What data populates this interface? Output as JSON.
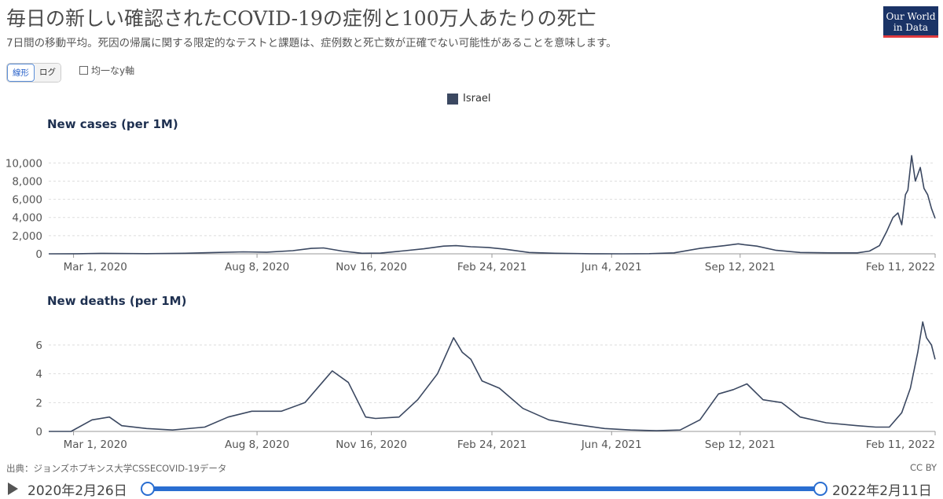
{
  "header": {
    "title": "毎日の新しい確認されたCOVID-19の症例と100万人あたりの死亡",
    "subtitle": "7日間の移動平均。死因の帰属に関する限定的なテストと課題は、症例数と死亡数が正確でない可能性があることを意味します。",
    "logo_line1": "Our World",
    "logo_line2": "in Data"
  },
  "controls": {
    "linear_label": "線形",
    "log_label": "ログ",
    "uniform_axis_label": "均一なy軸",
    "uniform_axis_checked": false
  },
  "legend": {
    "name": "Israel",
    "color": "#3b4861"
  },
  "chart_data": [
    {
      "type": "line",
      "title": "New cases (per 1M)",
      "x_tick_labels": [
        "Mar 1, 2020",
        "Aug 8, 2020",
        "Nov 16, 2020",
        "Feb 24, 2021",
        "Jun 4, 2021",
        "Sep 12, 2021",
        "Feb 11, 2022"
      ],
      "y_ticks": [
        0,
        2000,
        4000,
        6000,
        8000,
        10000
      ],
      "y_tick_labels": [
        "0",
        "2,000",
        "4,000",
        "6,000",
        "8,000",
        "10,000"
      ],
      "ylim": [
        0,
        11500
      ],
      "grid": true,
      "x": [
        "2020-02-26",
        "2020-03-20",
        "2020-04-10",
        "2020-05-15",
        "2020-06-15",
        "2020-07-10",
        "2020-08-01",
        "2020-08-20",
        "2020-09-10",
        "2020-09-25",
        "2020-10-05",
        "2020-10-20",
        "2020-11-05",
        "2020-11-20",
        "2020-12-10",
        "2020-12-25",
        "2021-01-10",
        "2021-01-20",
        "2021-02-01",
        "2021-02-15",
        "2021-03-01",
        "2021-03-20",
        "2021-04-10",
        "2021-05-10",
        "2021-06-04",
        "2021-06-25",
        "2021-07-15",
        "2021-08-05",
        "2021-08-25",
        "2021-09-05",
        "2021-09-10",
        "2021-09-20",
        "2021-10-05",
        "2021-10-25",
        "2021-11-20",
        "2021-12-10",
        "2021-12-20",
        "2021-12-28",
        "2022-01-03",
        "2022-01-08",
        "2022-01-12",
        "2022-01-15",
        "2022-01-18",
        "2022-01-20",
        "2022-01-23",
        "2022-01-26",
        "2022-01-30",
        "2022-02-02",
        "2022-02-05",
        "2022-02-08",
        "2022-02-11"
      ],
      "series": [
        {
          "name": "Israel",
          "values": [
            0,
            10,
            50,
            20,
            60,
            150,
            220,
            180,
            350,
            600,
            650,
            300,
            60,
            80,
            350,
            550,
            850,
            900,
            780,
            700,
            500,
            150,
            60,
            10,
            0,
            20,
            100,
            600,
            900,
            1100,
            1000,
            850,
            400,
            150,
            100,
            100,
            300,
            900,
            2500,
            4000,
            4500,
            3200,
            6500,
            7000,
            10800,
            8000,
            9500,
            7200,
            6500,
            5000,
            3900
          ]
        }
      ]
    },
    {
      "type": "line",
      "title": "New deaths (per 1M)",
      "x_tick_labels": [
        "Mar 1, 2020",
        "Aug 8, 2020",
        "Nov 16, 2020",
        "Feb 24, 2021",
        "Jun 4, 2021",
        "Sep 12, 2021",
        "Feb 11, 2022"
      ],
      "y_ticks": [
        0,
        2,
        4,
        6
      ],
      "y_tick_labels": [
        "0",
        "2",
        "4",
        "6"
      ],
      "ylim": [
        0,
        7.8
      ],
      "grid": true,
      "x": [
        "2020-02-26",
        "2020-03-15",
        "2020-04-01",
        "2020-04-15",
        "2020-04-25",
        "2020-05-15",
        "2020-06-05",
        "2020-07-01",
        "2020-07-20",
        "2020-08-08",
        "2020-09-01",
        "2020-09-20",
        "2020-10-05",
        "2020-10-12",
        "2020-10-25",
        "2020-11-08",
        "2020-11-16",
        "2020-12-05",
        "2020-12-20",
        "2021-01-05",
        "2021-01-18",
        "2021-01-25",
        "2021-02-01",
        "2021-02-10",
        "2021-02-24",
        "2021-03-15",
        "2021-04-05",
        "2021-04-25",
        "2021-05-20",
        "2021-06-10",
        "2021-07-01",
        "2021-07-20",
        "2021-08-05",
        "2021-08-20",
        "2021-09-01",
        "2021-09-12",
        "2021-09-25",
        "2021-10-10",
        "2021-10-25",
        "2021-11-15",
        "2021-12-10",
        "2021-12-25",
        "2022-01-05",
        "2022-01-15",
        "2022-01-22",
        "2022-01-28",
        "2022-02-01",
        "2022-02-04",
        "2022-02-08",
        "2022-02-11"
      ],
      "series": [
        {
          "name": "Israel",
          "values": [
            0,
            0,
            0.8,
            1.0,
            0.4,
            0.2,
            0.1,
            0.3,
            1.0,
            1.4,
            1.4,
            2.0,
            3.5,
            4.2,
            3.4,
            1.0,
            0.9,
            1.0,
            2.2,
            4.0,
            6.5,
            5.5,
            5.0,
            3.5,
            3.0,
            1.6,
            0.8,
            0.5,
            0.2,
            0.1,
            0.05,
            0.1,
            0.8,
            2.6,
            2.9,
            3.3,
            2.2,
            2.0,
            1.0,
            0.6,
            0.4,
            0.3,
            0.3,
            1.3,
            3.0,
            5.5,
            7.6,
            6.5,
            6.0,
            5.0
          ]
        }
      ]
    }
  ],
  "footer": {
    "source": "出典：ジョンズホプキンス大学CSSECOVID-19データ",
    "license": "CC BY"
  },
  "timeline": {
    "start_label": "2020年2月26日",
    "end_label": "2022年2月11日"
  }
}
